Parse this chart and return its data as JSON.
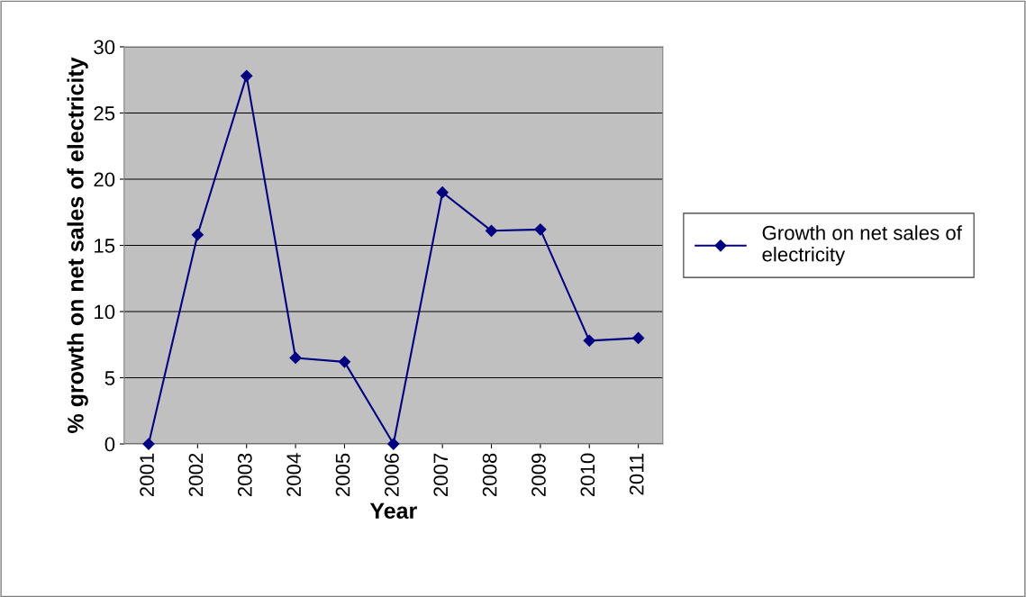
{
  "chart_data": {
    "type": "line",
    "xlabel": "Year",
    "ylabel": "% growth on net sales of electricity",
    "categories": [
      "2001",
      "2002",
      "2003",
      "2004",
      "2005",
      "2006",
      "2007",
      "2008",
      "2009",
      "2010",
      "2011"
    ],
    "series": [
      {
        "name": "Growth on net sales of electricity",
        "color": "#000080",
        "values": [
          0,
          15.8,
          27.8,
          6.5,
          6.2,
          0,
          19.0,
          16.1,
          16.2,
          7.8,
          8.0
        ]
      }
    ],
    "ylim": [
      0,
      30
    ],
    "yticks": [
      0,
      5,
      10,
      15,
      20,
      25,
      30
    ],
    "grid": "y",
    "legend": "right",
    "marker": "diamond",
    "line_style": "solid"
  }
}
